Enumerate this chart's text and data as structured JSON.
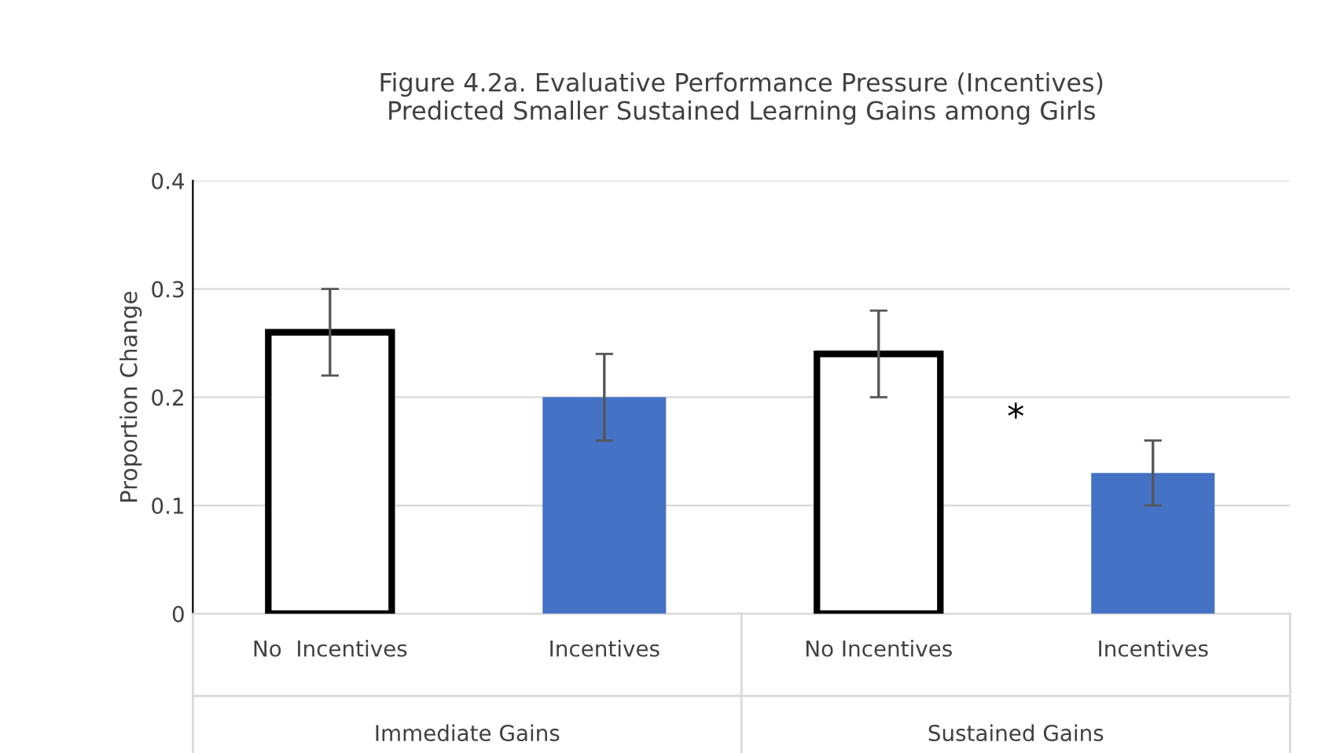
{
  "chart_data": {
    "type": "bar",
    "title": "Figure 4.2a. Evaluative Performance Pressure (Incentives)\nPredicted Smaller Sustained Learning Gains among Girls",
    "ylabel": "Proportion Change",
    "categories": [
      "No  Incentives",
      "Incentives",
      "No Incentives",
      "Incentives"
    ],
    "values": [
      0.26,
      0.2,
      0.24,
      0.13
    ],
    "errors": [
      0.04,
      0.04,
      0.04,
      0.03
    ],
    "colors": [
      "#ffffff",
      "#4472c4",
      "#ffffff",
      "#4472c4"
    ],
    "ylim": [
      0,
      0.4
    ],
    "yticks": [
      0,
      0.1,
      0.2,
      0.3,
      0.4
    ],
    "grid": "y",
    "annotations": [
      "Immediate Gains",
      "Sustained Gains",
      "*"
    ]
  }
}
